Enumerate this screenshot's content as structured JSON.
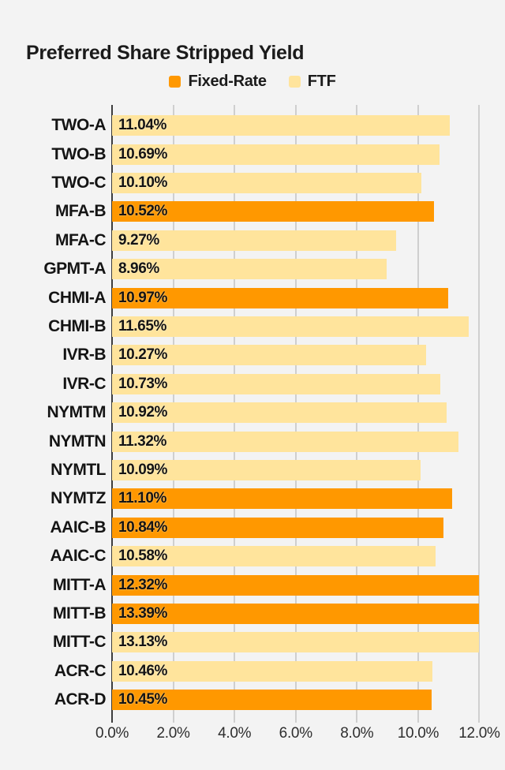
{
  "page": {
    "background": "#f3f3f3"
  },
  "title": "Preferred Share Stripped Yield",
  "legend": {
    "items": [
      {
        "label": "Fixed-Rate",
        "color": "#ff9800"
      },
      {
        "label": "FTF",
        "color": "#ffe49c"
      }
    ]
  },
  "chart_data": {
    "type": "bar",
    "orientation": "horizontal",
    "title": "Preferred Share Stripped Yield",
    "xlabel": "",
    "ylabel": "",
    "xlim": [
      0,
      12
    ],
    "x_tick_labels": [
      "0.0%",
      "2.0%",
      "4.0%",
      "6.0%",
      "8.0%",
      "10.0%",
      "12.0%"
    ],
    "grid": true,
    "bars_clipped_at_xmax": true,
    "legend_position": "top",
    "series_colors": {
      "Fixed-Rate": "#ff9800",
      "FTF": "#ffe49c"
    },
    "items": [
      {
        "label": "TWO-A",
        "value": 11.04,
        "display": "11.04%",
        "series": "FTF"
      },
      {
        "label": "TWO-B",
        "value": 10.69,
        "display": "10.69%",
        "series": "FTF"
      },
      {
        "label": "TWO-C",
        "value": 10.1,
        "display": "10.10%",
        "series": "FTF"
      },
      {
        "label": "MFA-B",
        "value": 10.52,
        "display": "10.52%",
        "series": "Fixed-Rate"
      },
      {
        "label": "MFA-C",
        "value": 9.27,
        "display": "9.27%",
        "series": "FTF"
      },
      {
        "label": "GPMT-A",
        "value": 8.96,
        "display": "8.96%",
        "series": "FTF"
      },
      {
        "label": "CHMI-A",
        "value": 10.97,
        "display": "10.97%",
        "series": "Fixed-Rate"
      },
      {
        "label": "CHMI-B",
        "value": 11.65,
        "display": "11.65%",
        "series": "FTF"
      },
      {
        "label": "IVR-B",
        "value": 10.27,
        "display": "10.27%",
        "series": "FTF"
      },
      {
        "label": "IVR-C",
        "value": 10.73,
        "display": "10.73%",
        "series": "FTF"
      },
      {
        "label": "NYMTM",
        "value": 10.92,
        "display": "10.92%",
        "series": "FTF"
      },
      {
        "label": "NYMTN",
        "value": 11.32,
        "display": "11.32%",
        "series": "FTF"
      },
      {
        "label": "NYMTL",
        "value": 10.09,
        "display": "10.09%",
        "series": "FTF"
      },
      {
        "label": "NYMTZ",
        "value": 11.1,
        "display": "11.10%",
        "series": "Fixed-Rate"
      },
      {
        "label": "AAIC-B",
        "value": 10.84,
        "display": "10.84%",
        "series": "Fixed-Rate"
      },
      {
        "label": "AAIC-C",
        "value": 10.58,
        "display": "10.58%",
        "series": "FTF"
      },
      {
        "label": "MITT-A",
        "value": 12.32,
        "display": "12.32%",
        "series": "Fixed-Rate"
      },
      {
        "label": "MITT-B",
        "value": 13.39,
        "display": "13.39%",
        "series": "Fixed-Rate"
      },
      {
        "label": "MITT-C",
        "value": 13.13,
        "display": "13.13%",
        "series": "FTF"
      },
      {
        "label": "ACR-C",
        "value": 10.46,
        "display": "10.46%",
        "series": "FTF"
      },
      {
        "label": "ACR-D",
        "value": 10.45,
        "display": "10.45%",
        "series": "Fixed-Rate"
      }
    ]
  }
}
